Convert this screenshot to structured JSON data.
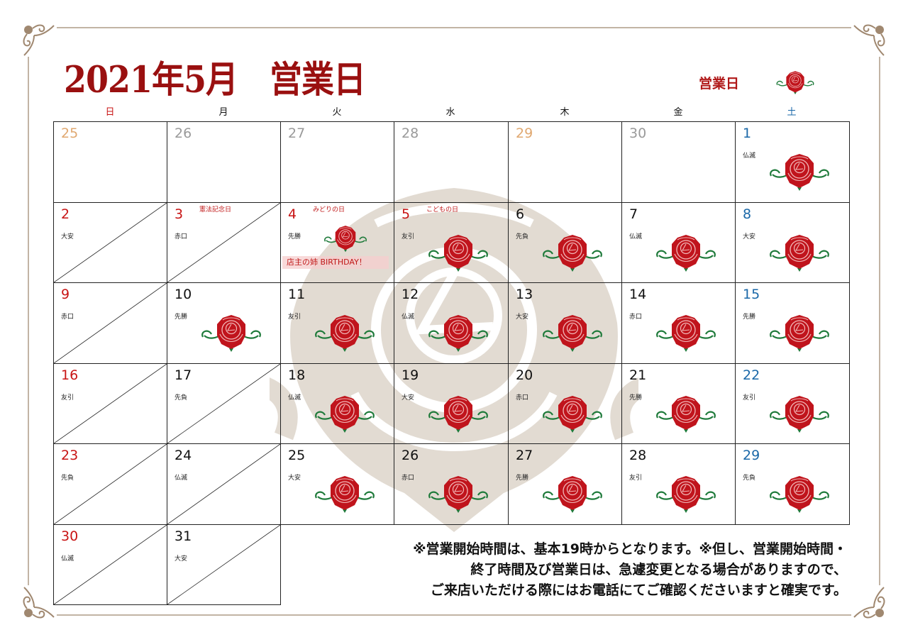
{
  "header": {
    "title": "2021年5月　営業日"
  },
  "legend": {
    "label": "営業日",
    "icon": "rose-icon"
  },
  "weekdays": [
    {
      "label": "日",
      "type": "sun"
    },
    {
      "label": "月",
      "type": "wk"
    },
    {
      "label": "火",
      "type": "wk"
    },
    {
      "label": "水",
      "type": "wk"
    },
    {
      "label": "木",
      "type": "wk"
    },
    {
      "label": "金",
      "type": "wk"
    },
    {
      "label": "土",
      "type": "sat"
    }
  ],
  "colors": {
    "title": "#9a1010",
    "sunday": "#c81414",
    "saturday": "#1a68a8",
    "frame": "#c2b4a4",
    "rose": "#c0141c",
    "leaf": "#1e7a3a",
    "watermark": "#e2dbd2"
  },
  "weeks": [
    [
      {
        "day": "25",
        "color": "tan",
        "status": "none"
      },
      {
        "day": "26",
        "color": "gray",
        "status": "none"
      },
      {
        "day": "27",
        "color": "gray",
        "status": "none"
      },
      {
        "day": "28",
        "color": "gray",
        "status": "none"
      },
      {
        "day": "29",
        "color": "tan",
        "status": "none"
      },
      {
        "day": "30",
        "color": "gray",
        "status": "none"
      },
      {
        "day": "1",
        "color": "sat",
        "rokuyo": "仏滅",
        "status": "open"
      }
    ],
    [
      {
        "day": "2",
        "color": "sun",
        "rokuyo": "大安",
        "status": "closed"
      },
      {
        "day": "3",
        "color": "hol",
        "rokuyo": "赤口",
        "holiday": "憲法記念日",
        "status": "closed"
      },
      {
        "day": "4",
        "color": "hol",
        "rokuyo": "先勝",
        "holiday": "みどりの日",
        "status": "open",
        "note": "店主の姉 BIRTHDAY！"
      },
      {
        "day": "5",
        "color": "hol",
        "rokuyo": "友引",
        "holiday": "こどもの日",
        "status": "open"
      },
      {
        "day": "6",
        "color": "wk",
        "rokuyo": "先負",
        "status": "open"
      },
      {
        "day": "7",
        "color": "wk",
        "rokuyo": "仏滅",
        "status": "open"
      },
      {
        "day": "8",
        "color": "sat",
        "rokuyo": "大安",
        "status": "open"
      }
    ],
    [
      {
        "day": "9",
        "color": "sun",
        "rokuyo": "赤口",
        "status": "closed"
      },
      {
        "day": "10",
        "color": "wk",
        "rokuyo": "先勝",
        "status": "open"
      },
      {
        "day": "11",
        "color": "wk",
        "rokuyo": "友引",
        "status": "open"
      },
      {
        "day": "12",
        "color": "wk",
        "rokuyo": "仏滅",
        "status": "open"
      },
      {
        "day": "13",
        "color": "wk",
        "rokuyo": "大安",
        "status": "open"
      },
      {
        "day": "14",
        "color": "wk",
        "rokuyo": "赤口",
        "status": "open"
      },
      {
        "day": "15",
        "color": "sat",
        "rokuyo": "先勝",
        "status": "open"
      }
    ],
    [
      {
        "day": "16",
        "color": "sun",
        "rokuyo": "友引",
        "status": "closed"
      },
      {
        "day": "17",
        "color": "wk",
        "rokuyo": "先負",
        "status": "closed"
      },
      {
        "day": "18",
        "color": "wk",
        "rokuyo": "仏滅",
        "status": "open"
      },
      {
        "day": "19",
        "color": "wk",
        "rokuyo": "大安",
        "status": "open"
      },
      {
        "day": "20",
        "color": "wk",
        "rokuyo": "赤口",
        "status": "open"
      },
      {
        "day": "21",
        "color": "wk",
        "rokuyo": "先勝",
        "status": "open"
      },
      {
        "day": "22",
        "color": "sat",
        "rokuyo": "友引",
        "status": "open"
      }
    ],
    [
      {
        "day": "23",
        "color": "sun",
        "rokuyo": "先負",
        "status": "closed"
      },
      {
        "day": "24",
        "color": "wk",
        "rokuyo": "仏滅",
        "status": "closed"
      },
      {
        "day": "25",
        "color": "wk",
        "rokuyo": "大安",
        "status": "open"
      },
      {
        "day": "26",
        "color": "wk",
        "rokuyo": "赤口",
        "status": "open"
      },
      {
        "day": "27",
        "color": "wk",
        "rokuyo": "先勝",
        "status": "open"
      },
      {
        "day": "28",
        "color": "wk",
        "rokuyo": "友引",
        "status": "open"
      },
      {
        "day": "29",
        "color": "sat",
        "rokuyo": "先負",
        "status": "open"
      }
    ],
    [
      {
        "day": "30",
        "color": "sun",
        "rokuyo": "仏滅",
        "status": "closed"
      },
      {
        "day": "31",
        "color": "wk",
        "rokuyo": "大安",
        "status": "closed"
      }
    ]
  ],
  "notice": [
    "※営業開始時間は、基本19時からとなります。※但し、営業開始時間・",
    "終了時間及び営業日は、急遽変更となる場合がありますので、",
    "ご来店いただける際にはお電話にてご確認くださいますと確実です。"
  ]
}
